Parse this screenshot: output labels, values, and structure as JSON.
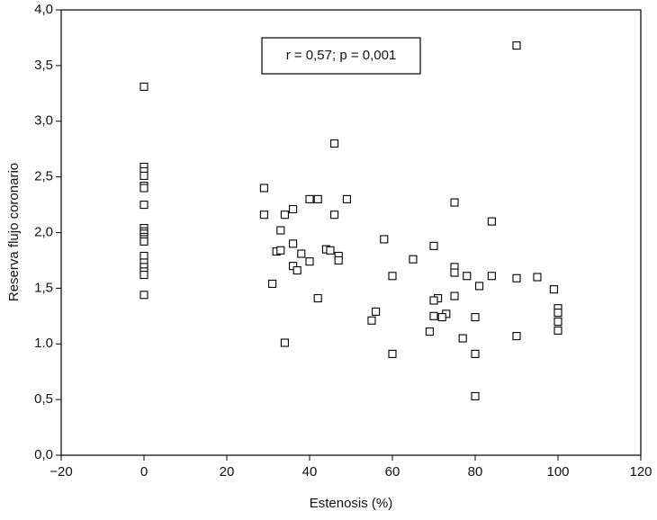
{
  "chart_data": {
    "type": "scatter",
    "xlabel": "Estenosis (%)",
    "ylabel": "Reserva flujo coronario",
    "annotation": "r = 0,57; p = 0,001",
    "color": "#000000",
    "x": [
      0,
      0,
      0,
      0,
      0,
      0,
      0,
      0,
      0,
      0,
      0,
      0,
      0,
      0,
      0,
      0,
      0,
      0,
      0,
      29,
      29,
      36,
      34,
      33,
      46,
      40,
      42,
      49,
      46,
      36,
      32,
      33,
      38,
      36,
      37,
      40,
      44,
      45,
      47,
      47,
      31,
      42,
      34,
      56,
      55,
      60,
      60,
      58,
      65,
      70,
      75,
      75,
      75,
      78,
      84,
      84,
      81,
      75,
      71,
      70,
      73,
      72,
      70,
      69,
      77,
      80,
      80,
      80,
      90,
      90,
      95,
      90,
      99,
      100,
      100,
      100,
      100
    ],
    "values": [
      3.31,
      2.59,
      2.55,
      2.51,
      2.42,
      2.4,
      2.25,
      2.04,
      2.01,
      1.99,
      1.96,
      1.94,
      1.92,
      1.79,
      1.73,
      1.69,
      1.65,
      1.62,
      1.44,
      2.4,
      2.16,
      2.21,
      2.16,
      2.02,
      2.8,
      2.3,
      2.3,
      2.3,
      2.16,
      1.9,
      1.83,
      1.84,
      1.81,
      1.7,
      1.66,
      1.74,
      1.85,
      1.84,
      1.79,
      1.75,
      1.54,
      1.41,
      1.01,
      1.29,
      1.21,
      1.61,
      0.91,
      1.94,
      1.76,
      1.88,
      2.27,
      1.69,
      1.64,
      1.61,
      2.1,
      1.61,
      1.52,
      1.43,
      1.41,
      1.39,
      1.27,
      1.24,
      1.25,
      1.11,
      1.05,
      1.24,
      0.91,
      0.53,
      3.68,
      1.59,
      1.6,
      1.07,
      1.49,
      1.32,
      1.28,
      1.2,
      1.12
    ],
    "xlim": [
      -20,
      120
    ],
    "xticks": [
      {
        "value": -20,
        "label": "−20"
      },
      0,
      20,
      40,
      60,
      80,
      100,
      120
    ],
    "ylim": [
      0,
      4
    ],
    "yticks": [
      {
        "value": 0,
        "label": "0,0"
      },
      {
        "value": 0.5,
        "label": "0,5"
      },
      {
        "value": 1,
        "label": "1.0"
      },
      {
        "value": 1.5,
        "label": "1,5"
      },
      {
        "value": 2,
        "label": "2,0"
      },
      {
        "value": 2.5,
        "label": "2,5"
      },
      {
        "value": 3,
        "label": "3,0"
      },
      {
        "value": 3.5,
        "label": "3,5"
      },
      {
        "value": 4,
        "label": "4,0"
      }
    ]
  }
}
